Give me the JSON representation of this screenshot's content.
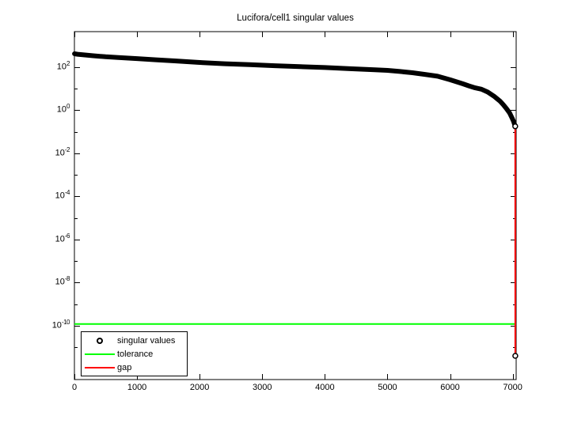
{
  "window": {
    "background": "#ffffff"
  },
  "chart_data": {
    "type": "scatter",
    "title": "Lucifora/cell1 singular values",
    "grid": false,
    "x_axis": {
      "min": 0,
      "max": 7055,
      "ticks": [
        0,
        1000,
        2000,
        3000,
        4000,
        5000,
        6000,
        7000
      ]
    },
    "y_axis": {
      "scale": "log",
      "tick_label_base": "10",
      "major_tick_exponents": [
        2,
        0,
        -2,
        -4,
        -6,
        -8,
        -10
      ],
      "minor_tick_exponents": [
        1,
        -1,
        -3,
        -5,
        -7,
        -9,
        -11
      ],
      "top_exponent": 3.65,
      "bottom_exponent": -12.5
    },
    "series": {
      "singular_values": {
        "name": "singular values",
        "color": "#000000",
        "marker": "o",
        "points": [
          [
            1,
            420
          ],
          [
            50,
            400
          ],
          [
            150,
            372
          ],
          [
            300,
            340
          ],
          [
            500,
            305
          ],
          [
            700,
            281
          ],
          [
            1000,
            250
          ],
          [
            1300,
            221
          ],
          [
            1600,
            196
          ],
          [
            2000,
            166
          ],
          [
            2400,
            145
          ],
          [
            2800,
            130
          ],
          [
            3200,
            117
          ],
          [
            3600,
            106
          ],
          [
            4000,
            96
          ],
          [
            4400,
            85
          ],
          [
            4800,
            76
          ],
          [
            5000,
            71
          ],
          [
            5200,
            63
          ],
          [
            5400,
            55
          ],
          [
            5600,
            46
          ],
          [
            5800,
            38
          ],
          [
            6000,
            26
          ],
          [
            6100,
            21
          ],
          [
            6200,
            17
          ],
          [
            6300,
            13.5
          ],
          [
            6400,
            11
          ],
          [
            6500,
            9.5
          ],
          [
            6600,
            7
          ],
          [
            6700,
            4.5
          ],
          [
            6800,
            2.6
          ],
          [
            6850,
            1.8
          ],
          [
            6900,
            1.2
          ],
          [
            6950,
            0.75
          ],
          [
            6990,
            0.43
          ],
          [
            7015,
            0.3
          ],
          [
            7030,
            0.22
          ],
          [
            7040,
            0.18
          ],
          [
            7041,
            4e-12
          ]
        ]
      },
      "tolerance": {
        "name": "tolerance",
        "color": "#00ff00",
        "type": "hline",
        "value": 1.2e-10
      },
      "gap": {
        "name": "gap",
        "color": "#ff0000",
        "type": "segment",
        "from": [
          7040,
          0.18
        ],
        "to": [
          7041,
          4e-12
        ]
      }
    },
    "legend": {
      "position": "southwest",
      "entries": [
        {
          "label": "singular values"
        },
        {
          "label": "tolerance"
        },
        {
          "label": "gap"
        }
      ]
    }
  }
}
